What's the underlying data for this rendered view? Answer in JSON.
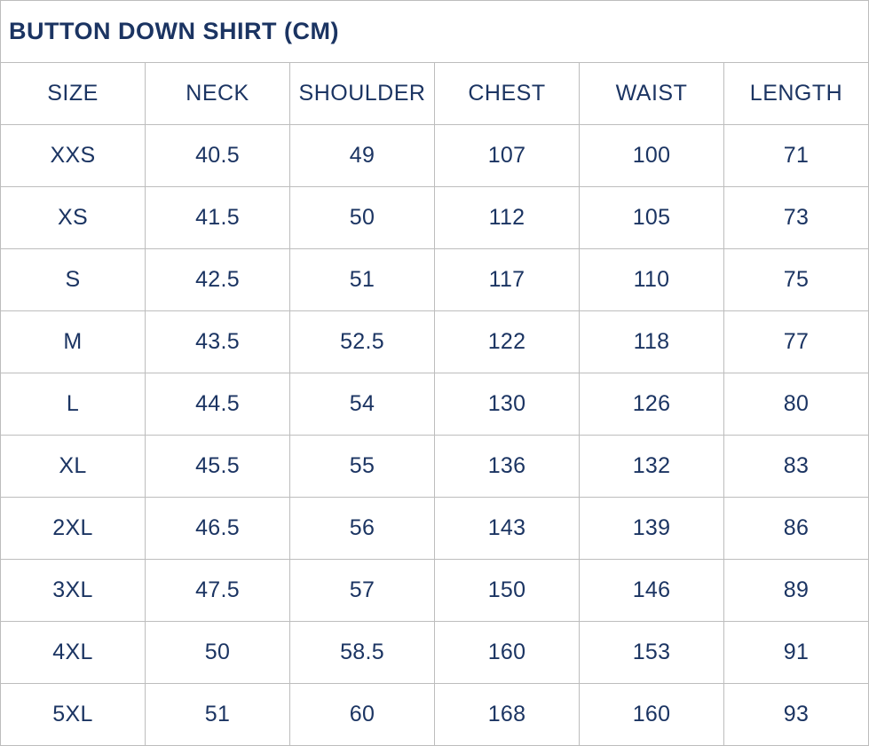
{
  "title": "BUTTON DOWN SHIRT (CM)",
  "unit": "CM",
  "colors": {
    "text": "#1b3462",
    "border": "#bdbdbd",
    "background": "#ffffff"
  },
  "chart_data": {
    "type": "table",
    "title": "BUTTON DOWN SHIRT (CM)",
    "columns": [
      "SIZE",
      "NECK",
      "SHOULDER",
      "CHEST",
      "WAIST",
      "LENGTH"
    ],
    "rows": [
      [
        "XXS",
        "40.5",
        "49",
        "107",
        "100",
        "71"
      ],
      [
        "XS",
        "41.5",
        "50",
        "112",
        "105",
        "73"
      ],
      [
        "S",
        "42.5",
        "51",
        "117",
        "110",
        "75"
      ],
      [
        "M",
        "43.5",
        "52.5",
        "122",
        "118",
        "77"
      ],
      [
        "L",
        "44.5",
        "54",
        "130",
        "126",
        "80"
      ],
      [
        "XL",
        "45.5",
        "55",
        "136",
        "132",
        "83"
      ],
      [
        "2XL",
        "46.5",
        "56",
        "143",
        "139",
        "86"
      ],
      [
        "3XL",
        "47.5",
        "57",
        "150",
        "146",
        "89"
      ],
      [
        "4XL",
        "50",
        "58.5",
        "160",
        "153",
        "91"
      ],
      [
        "5XL",
        "51",
        "60",
        "168",
        "160",
        "93"
      ]
    ]
  }
}
